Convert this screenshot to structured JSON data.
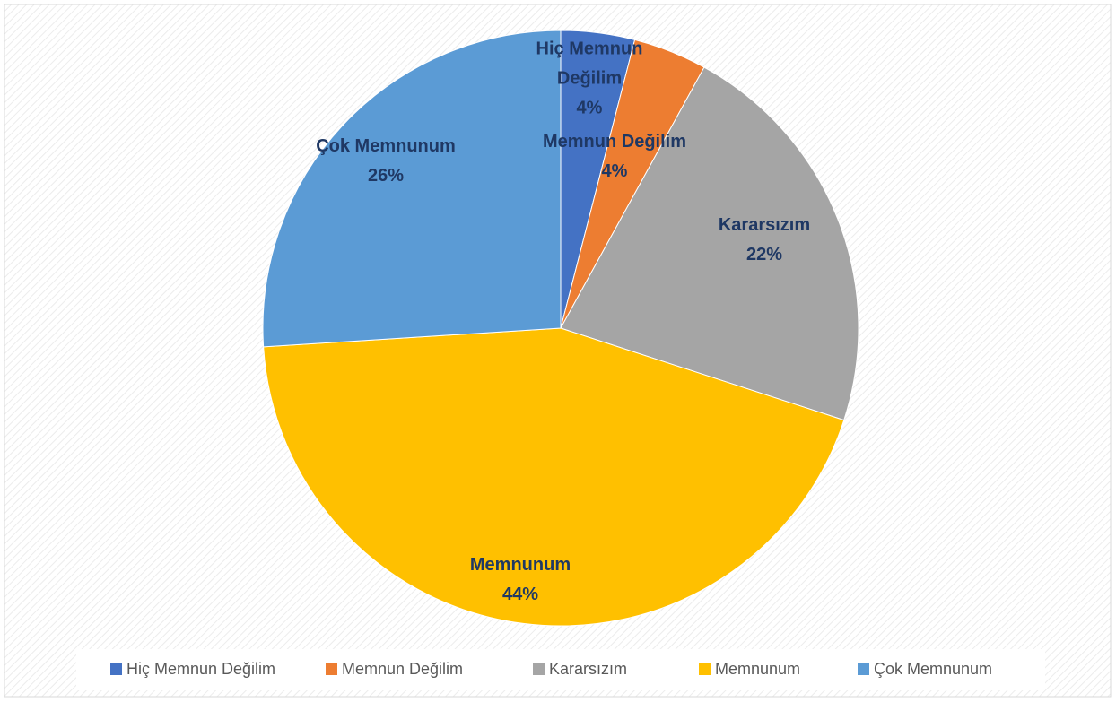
{
  "chart_data": {
    "type": "pie",
    "categories": [
      "Hiç Memnun Değilim",
      "Memnun Değilim",
      "Kararsızım",
      "Memnunum",
      "Çok Memnunum"
    ],
    "values": [
      4,
      4,
      22,
      44,
      26
    ],
    "value_labels": [
      "4%",
      "4%",
      "22%",
      "44%",
      "26%"
    ],
    "colors": [
      "#4472c4",
      "#ed7d31",
      "#a5a5a5",
      "#ffc000",
      "#5b9bd5"
    ],
    "legend": "bottom"
  }
}
